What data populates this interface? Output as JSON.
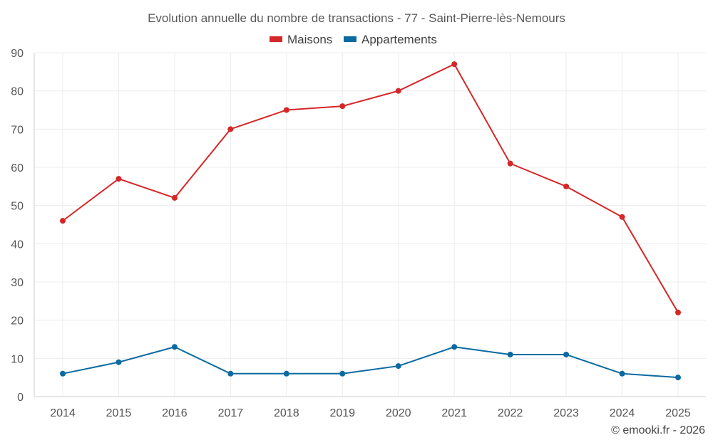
{
  "chart_data": {
    "type": "line",
    "title": "Evolution annuelle du nombre de transactions - 77 - Saint-Pierre-lès-Nemours",
    "categories": [
      "2014",
      "2015",
      "2016",
      "2017",
      "2018",
      "2019",
      "2020",
      "2021",
      "2022",
      "2023",
      "2024",
      "2025"
    ],
    "series": [
      {
        "name": "Maisons",
        "color": "#d62728",
        "values": [
          46,
          57,
          52,
          70,
          75,
          76,
          80,
          87,
          61,
          55,
          47,
          22
        ]
      },
      {
        "name": "Appartements",
        "color": "#0a6aa1",
        "values": [
          6,
          9,
          13,
          6,
          6,
          6,
          8,
          13,
          11,
          11,
          6,
          5
        ]
      }
    ],
    "ylim": [
      0,
      90
    ],
    "yticks": [
      0,
      10,
      20,
      30,
      40,
      50,
      60,
      70,
      80,
      90
    ],
    "xlabel": "",
    "ylabel": "",
    "grid": true,
    "legend": "top-center"
  },
  "credit": "© emooki.fr - 2026"
}
